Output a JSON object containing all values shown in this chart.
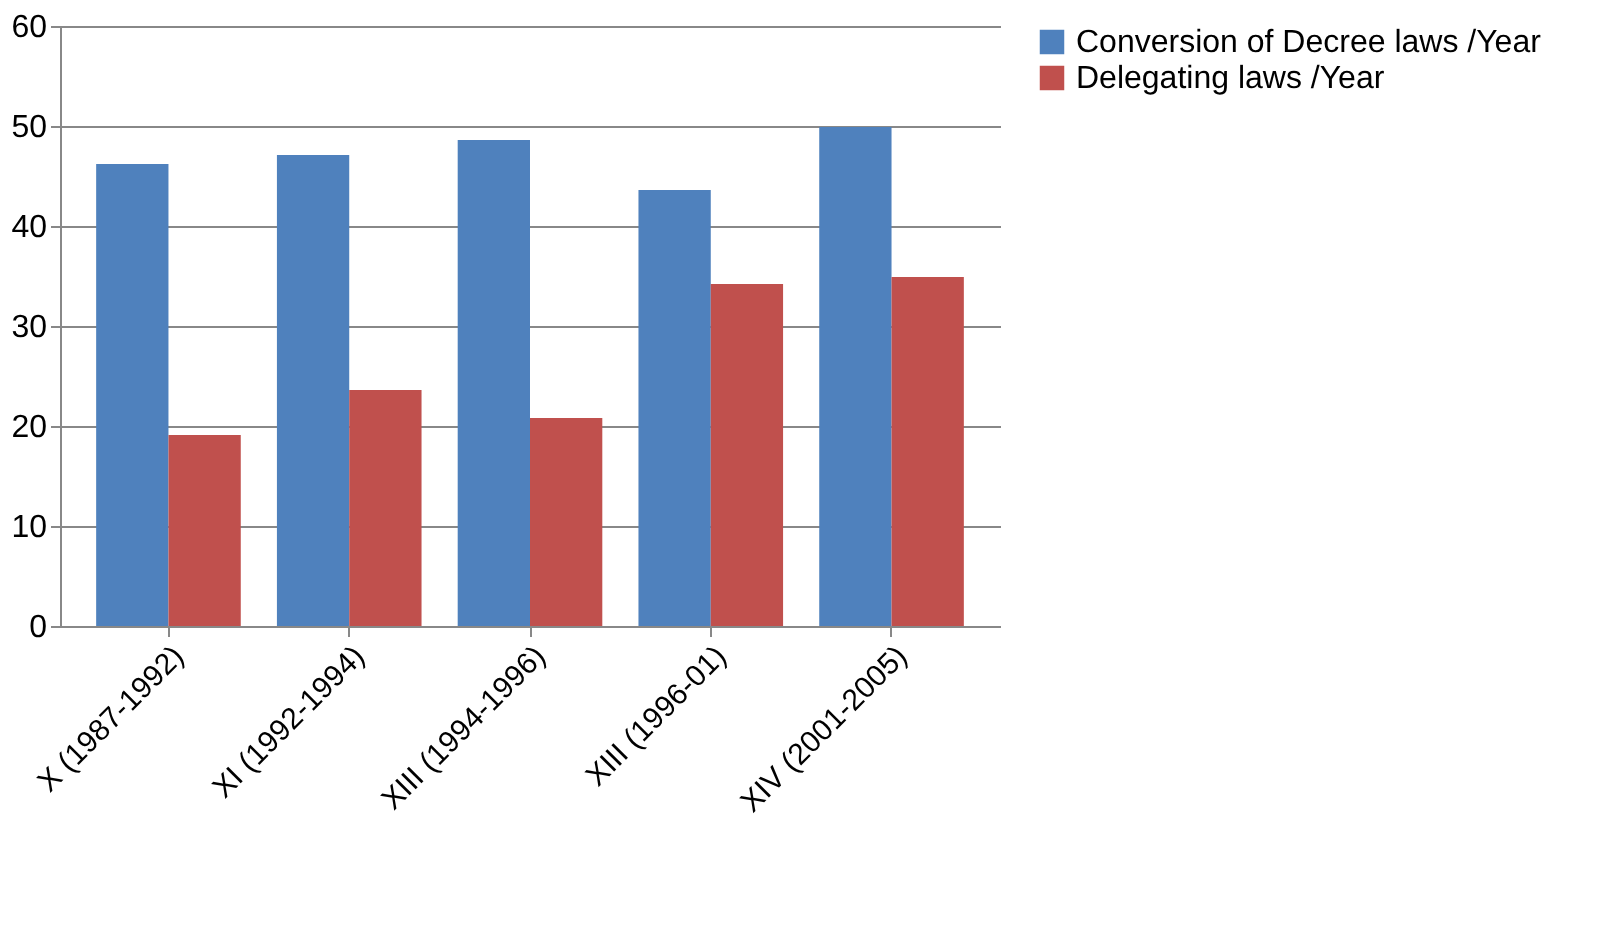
{
  "chart_data": {
    "type": "bar",
    "categories": [
      "X (1987-1992)",
      "XI (1992-1994)",
      "XIII (1994-1996)",
      "XIII (1996-01)",
      "XIV (2001-2005)"
    ],
    "series": [
      {
        "name": "Conversion of Decree laws /Year",
        "color": "#4f81bd",
        "values": [
          46.2,
          47.1,
          48.6,
          43.6,
          49.9
        ]
      },
      {
        "name": "Delegating laws /Year",
        "color": "#c0504d",
        "values": [
          19.1,
          23.6,
          20.8,
          34.2,
          34.9
        ]
      }
    ],
    "ylim": [
      0,
      60
    ],
    "yticks": [
      0,
      10,
      20,
      30,
      40,
      50,
      60
    ],
    "grid": "y",
    "legend": "right"
  }
}
